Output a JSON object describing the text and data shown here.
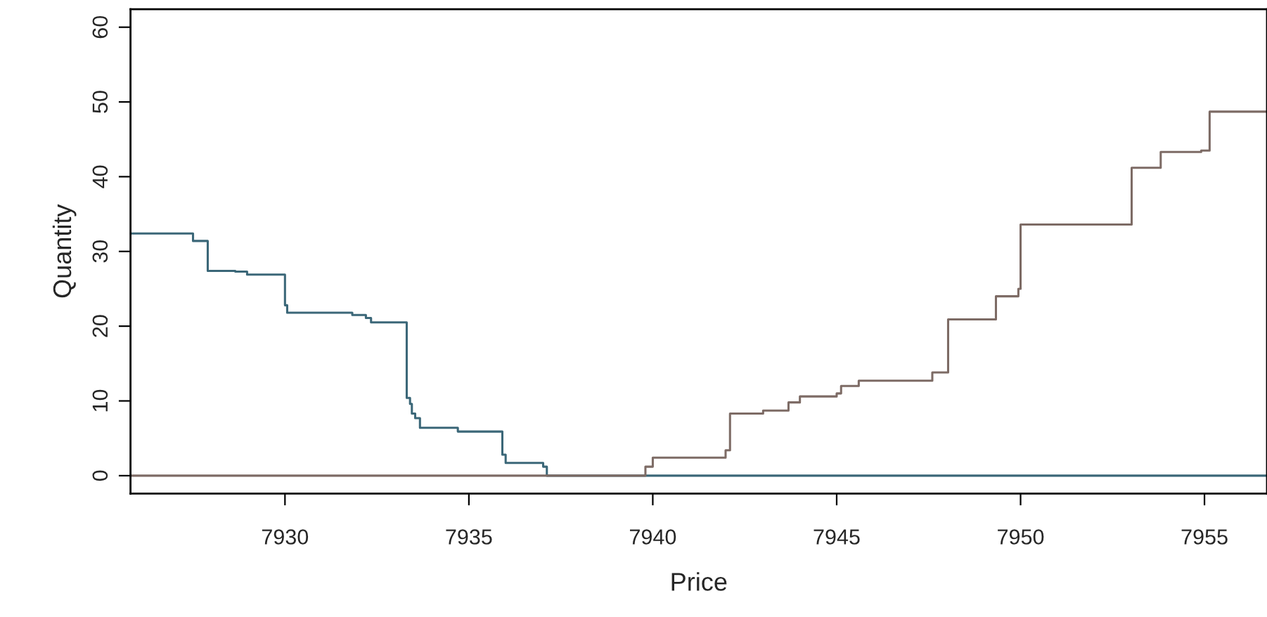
{
  "chart_data": {
    "type": "step",
    "xlabel": "Price",
    "ylabel": "Quantity",
    "xlim": [
      7925.8,
      7956.7
    ],
    "ylim": [
      -2.4,
      62.4
    ],
    "xticks": [
      7930,
      7935,
      7940,
      7945,
      7950,
      7955
    ],
    "yticks": [
      0,
      10,
      20,
      30,
      40,
      50,
      60
    ],
    "grid": false,
    "legend": false,
    "line_style": "solid",
    "marker": "none",
    "series": [
      {
        "color": "#3b6778",
        "x": [
          7925.8,
          7927.5,
          7927.9,
          7928.65,
          7928.97,
          7930.0,
          7930.06,
          7931.83,
          7932.2,
          7932.34,
          7933.31,
          7933.4,
          7933.45,
          7933.54,
          7933.67,
          7934.7,
          7935.91,
          7936.0,
          7937.02,
          7937.12,
          7956.7
        ],
        "values": [
          32.4,
          31.4,
          27.4,
          27.3,
          26.9,
          22.8,
          21.8,
          21.5,
          21.1,
          20.5,
          10.4,
          9.6,
          8.3,
          7.7,
          6.4,
          5.9,
          2.8,
          1.7,
          1.2,
          0,
          0
        ]
      },
      {
        "color": "#7d6b65",
        "x": [
          7925.8,
          7939.8,
          7940.0,
          7941.98,
          7942.1,
          7943.0,
          7943.69,
          7944.0,
          7945.0,
          7945.12,
          7945.6,
          7947.6,
          7948.03,
          7949.33,
          7949.94,
          7950.0,
          7953.02,
          7953.81,
          7954.91,
          7955.14,
          7956.7
        ],
        "values": [
          0,
          1.2,
          2.4,
          3.4,
          8.3,
          8.7,
          9.8,
          10.6,
          11.0,
          12.0,
          12.7,
          13.8,
          20.9,
          24.0,
          25.0,
          33.6,
          41.2,
          43.3,
          43.5,
          48.7,
          48.7
        ]
      }
    ]
  }
}
